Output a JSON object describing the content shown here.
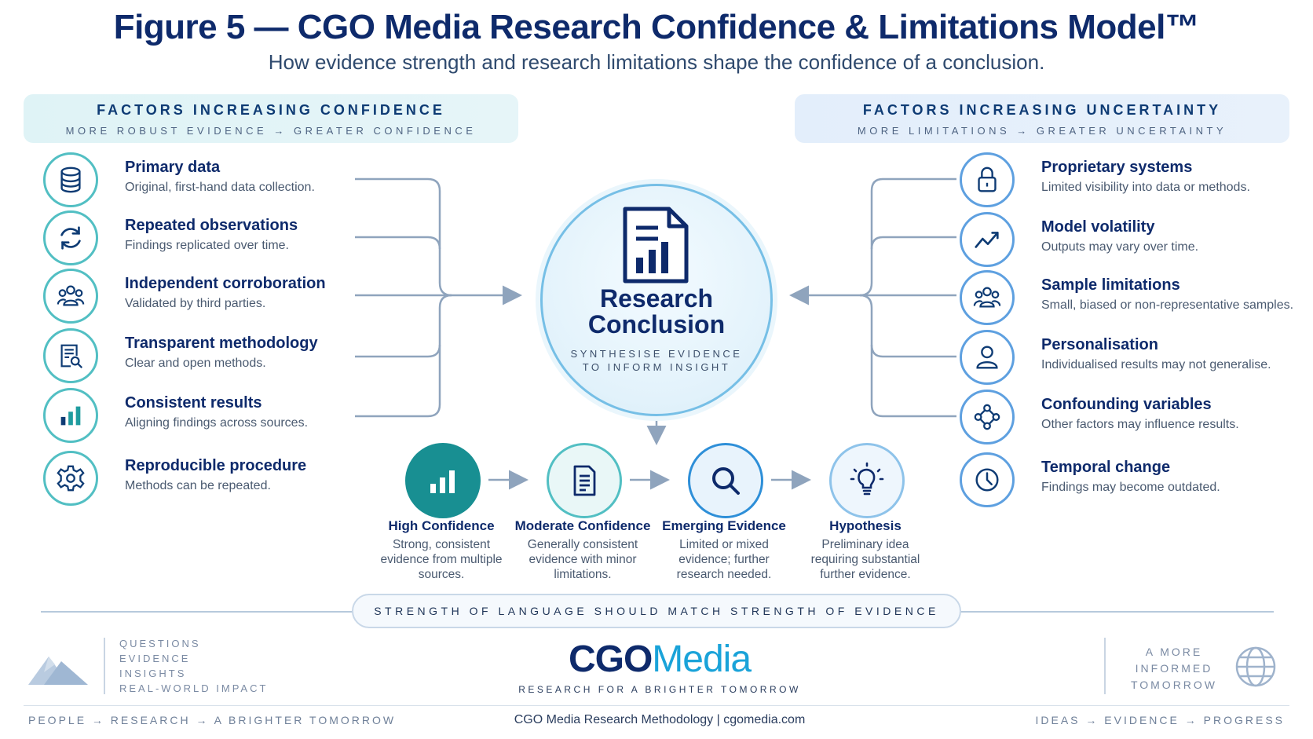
{
  "title": "Figure 5 — CGO Media Research Confidence & Limitations Model™",
  "subtitle": "How evidence strength and research limitations shape the confidence of a conclusion.",
  "left_header": {
    "title": "FACTORS INCREASING CONFIDENCE",
    "subtitle": "MORE ROBUST EVIDENCE → GREATER CONFIDENCE"
  },
  "right_header": {
    "title": "FACTORS INCREASING UNCERTAINTY",
    "subtitle": "MORE LIMITATIONS → GREATER UNCERTAINTY"
  },
  "confidence_factors": [
    {
      "title": "Primary data",
      "desc": "Original, first-hand data collection.",
      "icon": "database-icon"
    },
    {
      "title": "Repeated observations",
      "desc": "Findings replicated over time.",
      "icon": "refresh-icon"
    },
    {
      "title": "Independent corroboration",
      "desc": "Validated by third parties.",
      "icon": "people-icon"
    },
    {
      "title": "Transparent methodology",
      "desc": "Clear and open methods.",
      "icon": "document-search-icon"
    },
    {
      "title": "Consistent results",
      "desc": "Aligning findings across sources.",
      "icon": "bar-chart-icon"
    },
    {
      "title": "Reproducible procedure",
      "desc": "Methods can be repeated.",
      "icon": "gear-icon"
    }
  ],
  "uncertainty_factors": [
    {
      "title": "Proprietary systems",
      "desc": "Limited visibility into data or methods.",
      "icon": "lock-icon"
    },
    {
      "title": "Model volatility",
      "desc": "Outputs may vary over time.",
      "icon": "trend-icon"
    },
    {
      "title": "Sample limitations",
      "desc": "Small, biased or non-representative samples.",
      "icon": "people-icon"
    },
    {
      "title": "Personalisation",
      "desc": "Individualised results may not generalise.",
      "icon": "person-icon"
    },
    {
      "title": "Confounding variables",
      "desc": "Other factors may influence results.",
      "icon": "network-icon"
    },
    {
      "title": "Temporal change",
      "desc": "Findings may become outdated.",
      "icon": "clock-icon"
    }
  ],
  "center": {
    "title_line1": "Research",
    "title_line2": "Conclusion",
    "sub_line1": "SYNTHESISE EVIDENCE",
    "sub_line2": "TO INFORM INSIGHT"
  },
  "stages": [
    {
      "title": "High Confidence",
      "desc": [
        "Strong, consistent",
        "evidence from multiple",
        "sources."
      ],
      "icon": "bar-chart-icon"
    },
    {
      "title": "Moderate Confidence",
      "desc": [
        "Generally consistent",
        "evidence with minor",
        "limitations."
      ],
      "icon": "document-icon"
    },
    {
      "title": "Emerging Evidence",
      "desc": [
        "Limited or mixed",
        "evidence; further",
        "research needed."
      ],
      "icon": "magnifier-icon"
    },
    {
      "title": "Hypothesis",
      "desc": [
        "Preliminary idea",
        "requiring substantial",
        "further evidence."
      ],
      "icon": "lightbulb-icon"
    }
  ],
  "banner": "STRENGTH OF LANGUAGE SHOULD MATCH STRENGTH OF EVIDENCE",
  "footer": {
    "left_words": [
      "QUESTIONS",
      "EVIDENCE",
      "INSIGHTS",
      "REAL-WORLD IMPACT"
    ],
    "brand_cgo": "CGO",
    "brand_media": "Media",
    "brand_tagline": "RESEARCH FOR A BRIGHTER TOMORROW",
    "right_words": [
      "A MORE",
      "INFORMED",
      "TOMORROW"
    ],
    "bar_left": "PEOPLE → RESEARCH → A BRIGHTER TOMORROW",
    "bar_center": "CGO Media Research Methodology  |  cgomedia.com",
    "bar_right": "IDEAS → EVIDENCE → PROGRESS"
  },
  "colors": {
    "navy": "#0e2a6b",
    "teal": "#1f9c9f",
    "blue": "#1aa3d9",
    "connector": "#8fa4bd"
  }
}
